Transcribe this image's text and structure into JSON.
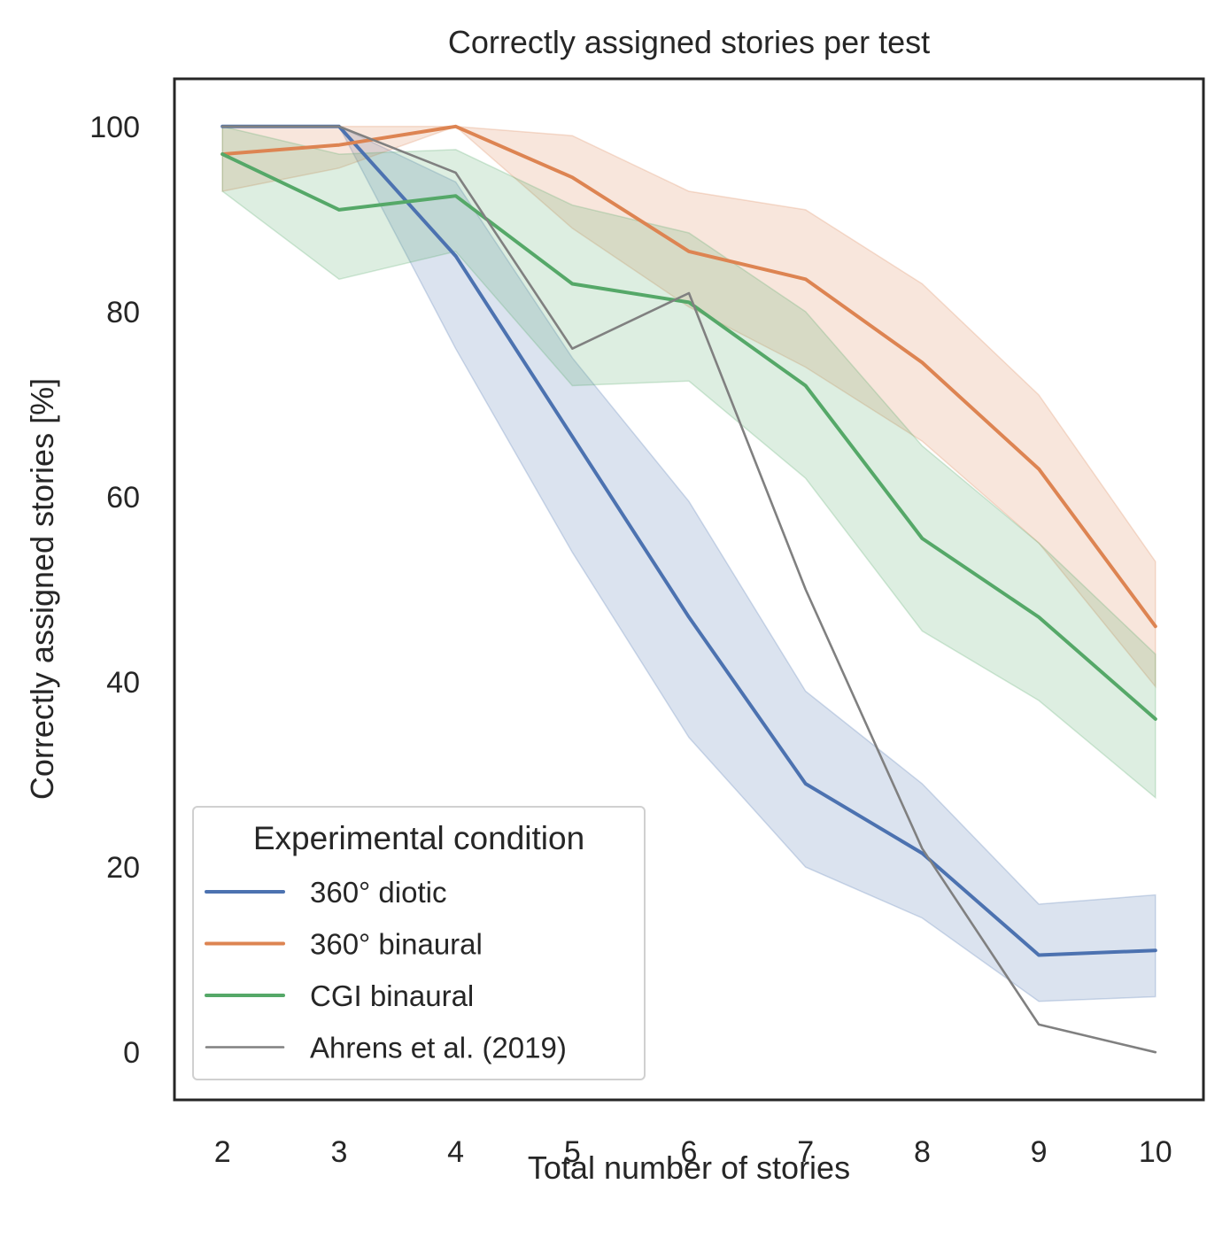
{
  "chart_data": {
    "type": "line",
    "title": "Correctly assigned stories per test",
    "xlabel": "Total number of stories",
    "ylabel": "Correctly assigned stories [%]",
    "x": [
      2,
      3,
      4,
      5,
      6,
      7,
      8,
      9,
      10
    ],
    "xlim": [
      1.6,
      10.4
    ],
    "ylim": [
      -5,
      105
    ],
    "yticks": [
      0,
      20,
      40,
      60,
      80,
      100
    ],
    "grid": false,
    "legend": {
      "title": "Experimental condition",
      "placement": "lower-left"
    },
    "series": [
      {
        "name": "360° diotic",
        "color": "#4c72b0",
        "values": [
          100,
          100,
          86,
          66.5,
          47,
          29,
          21.5,
          10.5,
          11
        ],
        "ci_low": [
          100,
          100,
          76,
          54,
          34,
          20,
          14.5,
          5.5,
          6
        ],
        "ci_high": [
          100,
          100,
          94,
          75,
          59.5,
          39,
          29,
          16,
          17
        ]
      },
      {
        "name": "360° binaural",
        "color": "#dd8452",
        "values": [
          97,
          98,
          100,
          94.5,
          86.5,
          83.5,
          74.5,
          63,
          46
        ],
        "ci_low": [
          93,
          95.5,
          100,
          89,
          80.5,
          74,
          66,
          55,
          39.5
        ],
        "ci_high": [
          100,
          100,
          100,
          99,
          93,
          91,
          83,
          71,
          53
        ]
      },
      {
        "name": "CGI binaural",
        "color": "#55a868",
        "values": [
          97,
          91,
          92.5,
          83,
          81,
          72,
          55.5,
          47,
          36
        ],
        "ci_low": [
          93,
          83.5,
          86.5,
          72,
          72.5,
          62,
          45.5,
          38,
          27.5
        ],
        "ci_high": [
          100,
          97,
          97.5,
          91.5,
          88.5,
          80,
          65.5,
          55,
          43
        ]
      },
      {
        "name": "Ahrens et al. (2019)",
        "color": "#808080",
        "values": [
          100,
          100,
          95,
          76,
          82,
          50,
          22,
          3,
          0
        ]
      }
    ]
  }
}
